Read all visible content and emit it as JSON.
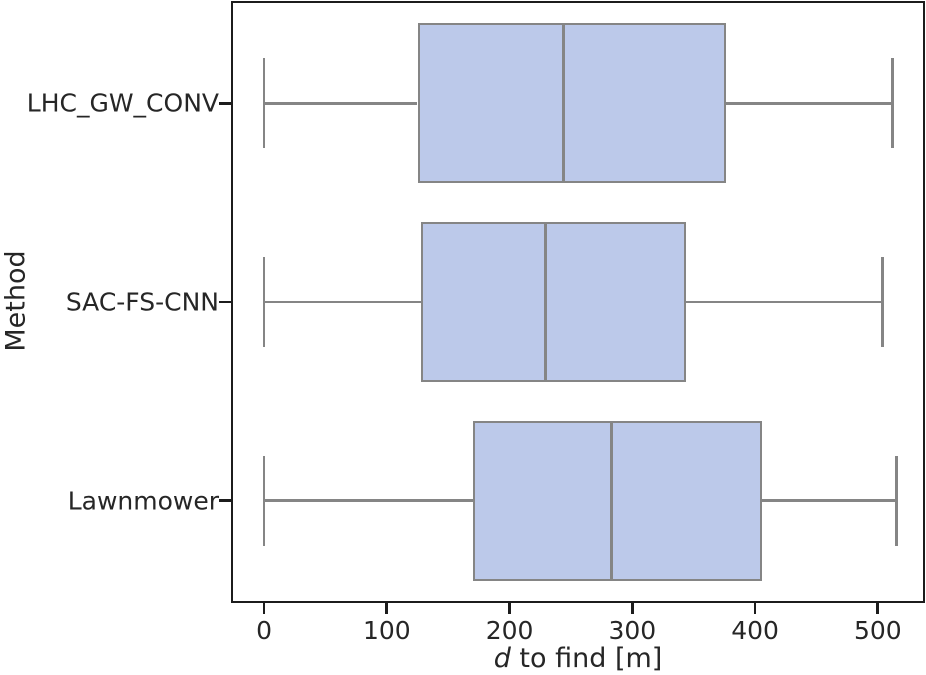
{
  "chart_data": {
    "type": "boxplot",
    "orientation": "horizontal",
    "title": "",
    "xlabel_italic": "d",
    "xlabel_rest": " to find [m]",
    "ylabel": "Method",
    "xlim": [
      -24.5,
      536
    ],
    "xticks": [
      "0",
      "100",
      "200",
      "300",
      "400",
      "500"
    ],
    "xtick_values": [
      0,
      100,
      200,
      300,
      400,
      500
    ],
    "categories": [
      "LHC_GW_CONV",
      "SAC-FS-CNN",
      "Lawnmower"
    ],
    "boxes": [
      {
        "label": "LHC_GW_CONV",
        "whislo": 0,
        "q1": 125,
        "med": 244,
        "q3": 376,
        "whishi": 512
      },
      {
        "label": "SAC-FS-CNN",
        "whislo": 0,
        "q1": 128,
        "med": 229,
        "q3": 344,
        "whishi": 504
      },
      {
        "label": "Lawnmower",
        "whislo": 0,
        "q1": 170,
        "med": 283,
        "q3": 406,
        "whishi": 515
      }
    ],
    "grid": false,
    "legend": null,
    "colors": {
      "box_fill": "#bcc9ea",
      "box_edge": "#858585",
      "whisker": "#858585",
      "median": "#858585",
      "frame": "#1c1c1c",
      "tick": "#1c1c1c",
      "text": "#262626"
    }
  }
}
